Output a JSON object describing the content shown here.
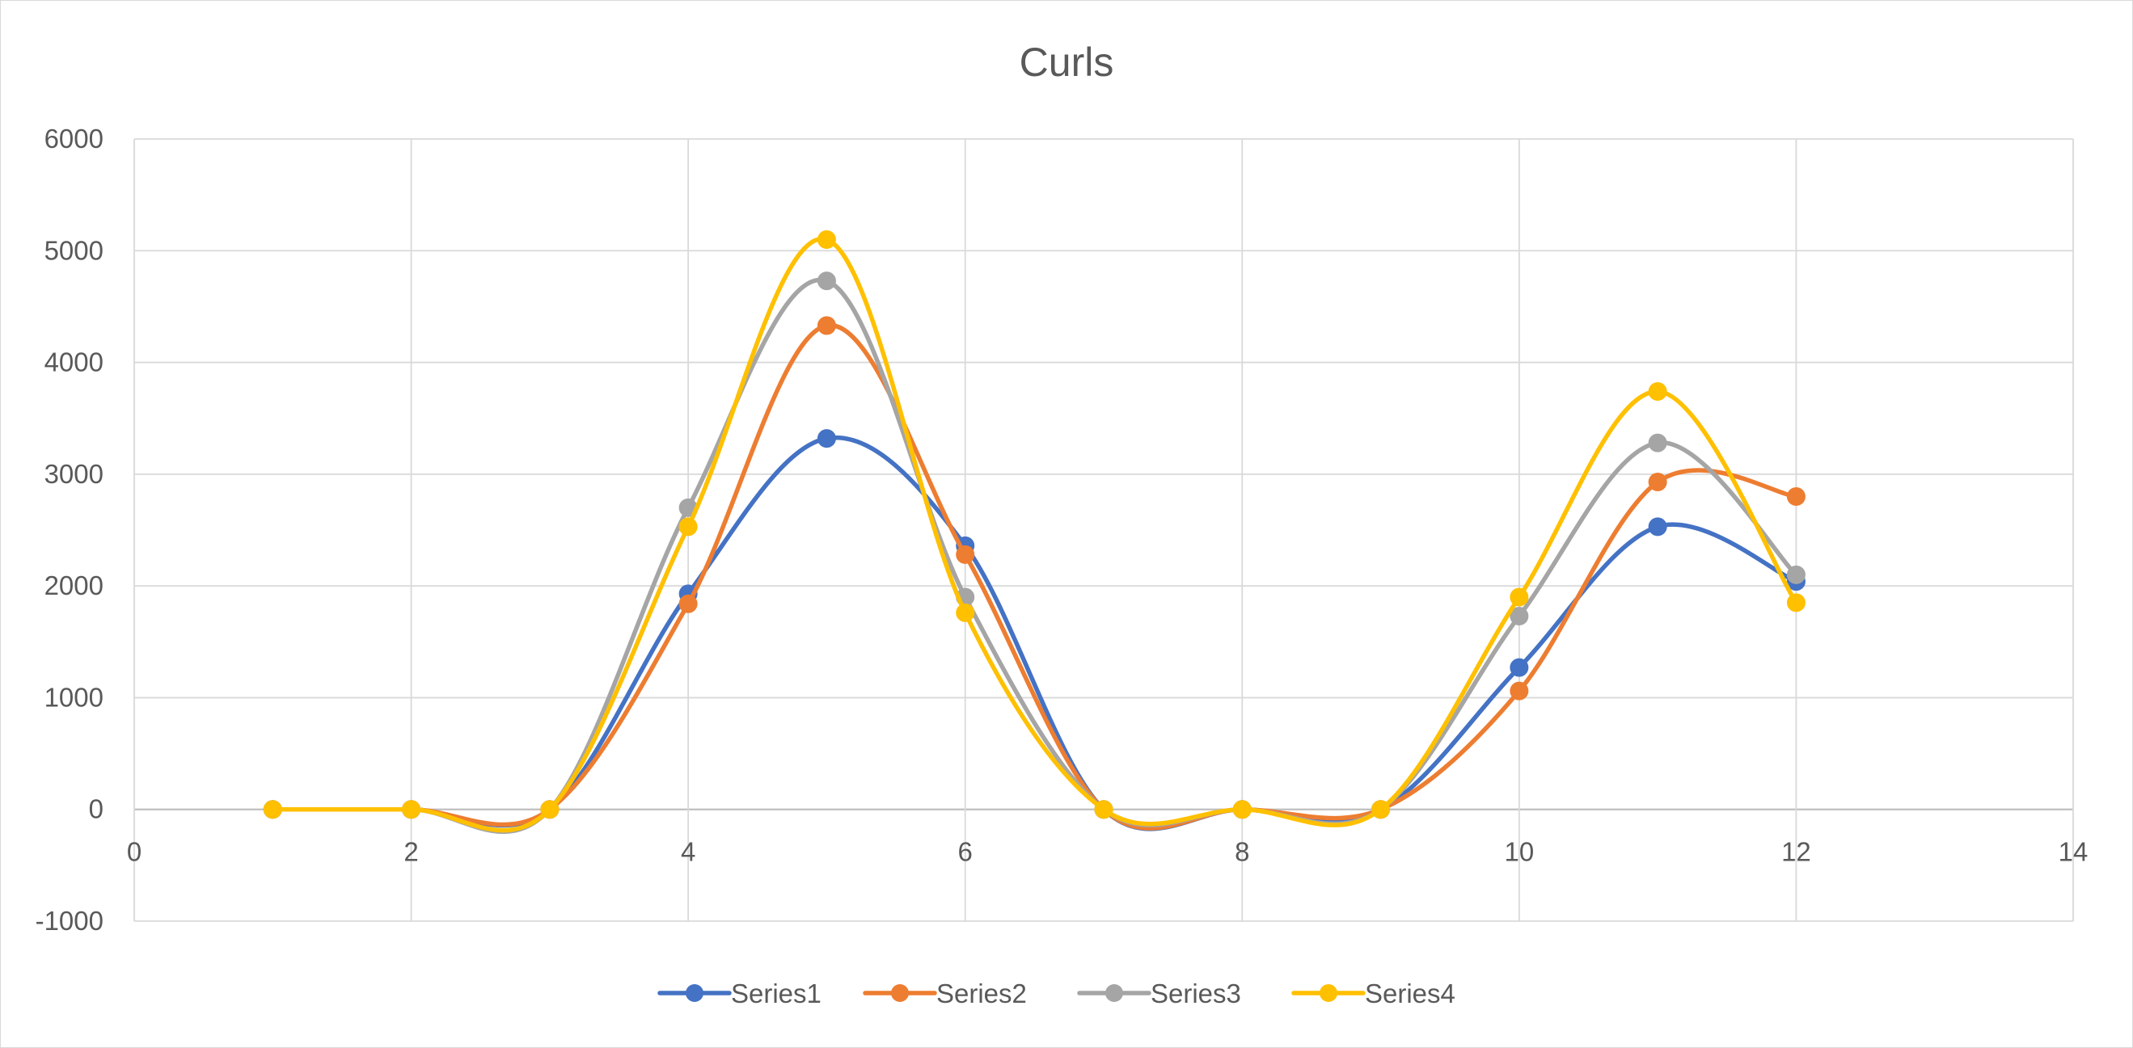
{
  "chart_data": {
    "type": "scatter",
    "subtype": "smooth-lines-with-markers",
    "title": "Curls",
    "xlabel": "",
    "ylabel": "",
    "xlim": [
      0,
      14
    ],
    "ylim": [
      -1000,
      6000
    ],
    "x_ticks": [
      0,
      2,
      4,
      6,
      8,
      10,
      12,
      14
    ],
    "y_ticks": [
      -1000,
      0,
      1000,
      2000,
      3000,
      4000,
      5000,
      6000
    ],
    "grid": true,
    "legend_position": "bottom",
    "x": [
      1,
      2,
      3,
      4,
      5,
      6,
      7,
      8,
      9,
      10,
      11,
      12
    ],
    "series": [
      {
        "name": "Series1",
        "color": "#4472C4",
        "values": [
          0,
          0,
          0,
          1930,
          3320,
          2360,
          0,
          0,
          0,
          1270,
          2530,
          2040
        ]
      },
      {
        "name": "Series2",
        "color": "#ED7D31",
        "values": [
          0,
          0,
          0,
          1840,
          4330,
          2280,
          0,
          0,
          0,
          1060,
          2930,
          2800
        ]
      },
      {
        "name": "Series3",
        "color": "#A5A5A5",
        "values": [
          0,
          0,
          0,
          2700,
          4730,
          1900,
          0,
          0,
          0,
          1730,
          3280,
          2100
        ]
      },
      {
        "name": "Series4",
        "color": "#FFC000",
        "values": [
          0,
          0,
          0,
          2530,
          5100,
          1760,
          0,
          0,
          0,
          1900,
          3740,
          1850
        ]
      }
    ]
  }
}
